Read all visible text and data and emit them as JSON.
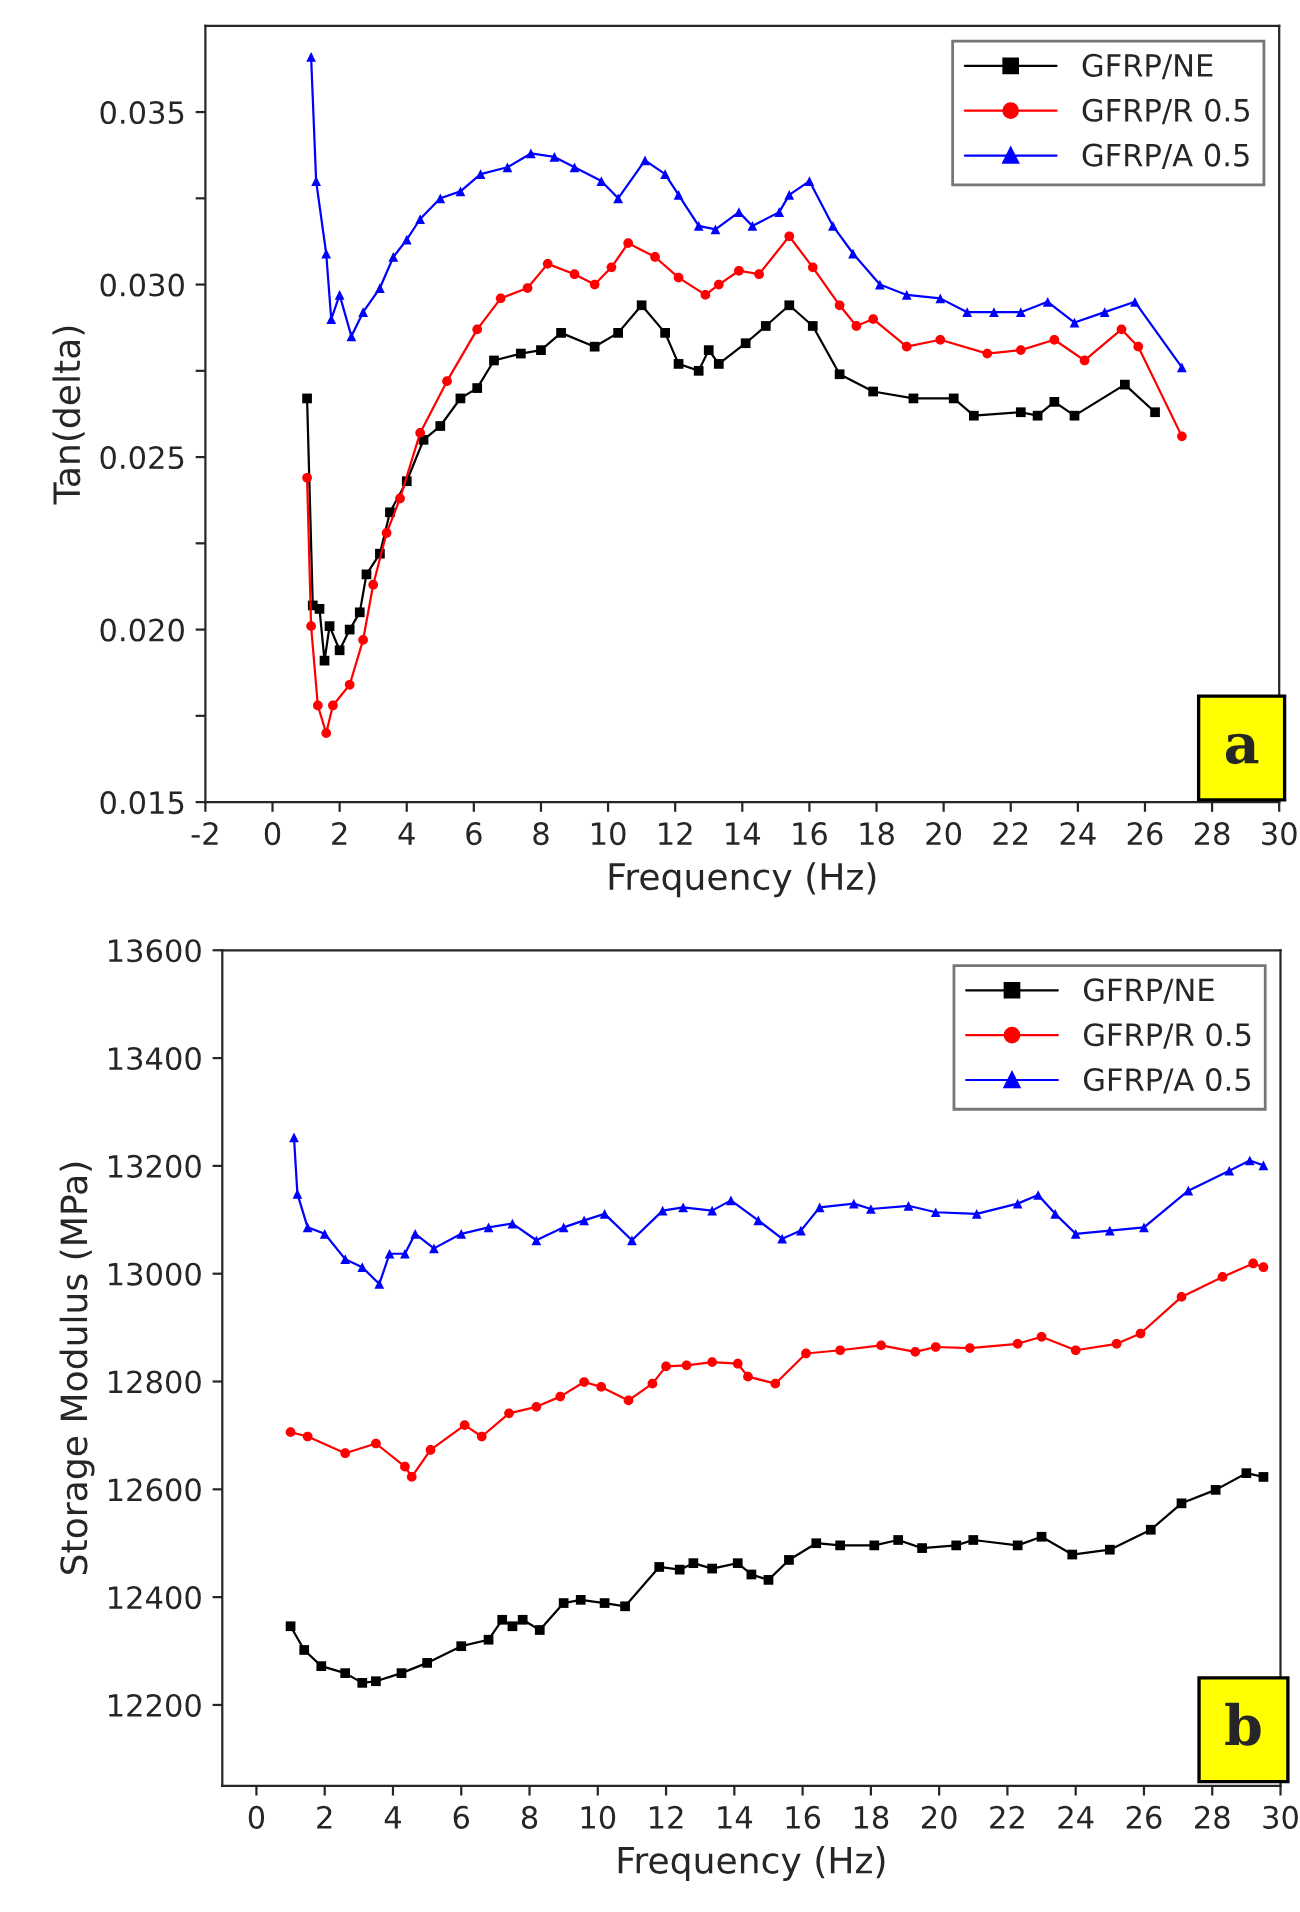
{
  "chart_data": [
    {
      "type": "line",
      "xlabel": "Frequency (Hz)",
      "ylabel": "Tan(delta)",
      "xlim": [
        -2,
        30
      ],
      "xticks": [
        -2,
        0,
        2,
        4,
        6,
        8,
        10,
        12,
        14,
        16,
        18,
        20,
        22,
        24,
        26,
        28,
        30
      ],
      "ylim": [
        0.015,
        0.0375
      ],
      "yticks": [
        {
          "value": 0.015,
          "label": "0.015"
        },
        {
          "value": 0.0175,
          "label": null
        },
        {
          "value": 0.02,
          "label": "0.020"
        },
        {
          "value": 0.0225,
          "label": null
        },
        {
          "value": 0.025,
          "label": "0.025"
        },
        {
          "value": 0.0275,
          "label": null
        },
        {
          "value": 0.03,
          "label": "0.030"
        },
        {
          "value": 0.0325,
          "label": null
        },
        {
          "value": 0.035,
          "label": "0.035"
        }
      ],
      "grid": false,
      "legend": "top right",
      "line_style": "solid",
      "annotations": [
        "a"
      ],
      "series": [
        {
          "name": "GFRP/NE",
          "color": "#000000",
          "marker": "square",
          "x": [
            1.03,
            1.2,
            1.4,
            1.55,
            1.7,
            2.0,
            2.3,
            2.6,
            2.8,
            3.2,
            3.5,
            4.0,
            4.5,
            5.0,
            5.6,
            6.1,
            6.6,
            7.4,
            8.0,
            8.6,
            9.6,
            10.3,
            11.0,
            11.7,
            12.1,
            12.7,
            13.0,
            13.3,
            14.1,
            14.7,
            15.4,
            16.1,
            16.9,
            17.9,
            19.1,
            20.3,
            20.9,
            22.3,
            22.8,
            23.3,
            23.9,
            25.4,
            26.3
          ],
          "values": [
            0.0267,
            0.0207,
            0.0206,
            0.0191,
            0.0201,
            0.0194,
            0.02,
            0.0205,
            0.0216,
            0.0222,
            0.0234,
            0.0243,
            0.0255,
            0.0259,
            0.0267,
            0.027,
            0.0278,
            0.028,
            0.0281,
            0.0286,
            0.0282,
            0.0286,
            0.0294,
            0.0286,
            0.0277,
            0.0275,
            0.0281,
            0.0277,
            0.0283,
            0.0288,
            0.0294,
            0.0288,
            0.0274,
            0.0269,
            0.0267,
            0.0267,
            0.0262,
            0.0263,
            0.0262,
            0.0266,
            0.0262,
            0.0271,
            0.0263
          ]
        },
        {
          "name": "GFRP/R 0.5",
          "color": "#ff0000",
          "marker": "circle",
          "x": [
            1.03,
            1.15,
            1.35,
            1.6,
            1.8,
            2.3,
            2.7,
            3.0,
            3.4,
            3.8,
            4.4,
            5.2,
            6.1,
            6.8,
            7.6,
            8.2,
            9.0,
            9.6,
            10.1,
            10.6,
            11.4,
            12.1,
            12.9,
            13.3,
            13.9,
            14.5,
            15.4,
            16.1,
            16.9,
            17.4,
            17.9,
            18.9,
            19.9,
            21.3,
            22.3,
            23.3,
            24.2,
            25.3,
            25.8,
            27.1
          ],
          "values": [
            0.0244,
            0.0201,
            0.0178,
            0.017,
            0.0178,
            0.0184,
            0.0197,
            0.0213,
            0.0228,
            0.0238,
            0.0257,
            0.0272,
            0.0287,
            0.0296,
            0.0299,
            0.0306,
            0.0303,
            0.03,
            0.0305,
            0.0312,
            0.0308,
            0.0302,
            0.0297,
            0.03,
            0.0304,
            0.0303,
            0.0314,
            0.0305,
            0.0294,
            0.0288,
            0.029,
            0.0282,
            0.0284,
            0.028,
            0.0281,
            0.0284,
            0.0278,
            0.0287,
            0.0282,
            0.0256
          ]
        },
        {
          "name": "GFRP/A 0.5",
          "color": "#0000ff",
          "marker": "triangle",
          "x": [
            1.15,
            1.3,
            1.6,
            1.75,
            2.0,
            2.35,
            2.7,
            3.2,
            3.6,
            4.0,
            4.4,
            5.0,
            5.6,
            6.2,
            7.0,
            7.7,
            8.4,
            9.0,
            9.8,
            10.3,
            11.1,
            11.7,
            12.1,
            12.7,
            13.2,
            13.9,
            14.3,
            15.1,
            15.4,
            16.0,
            16.7,
            17.3,
            18.1,
            18.9,
            19.9,
            20.7,
            21.5,
            22.3,
            23.1,
            23.9,
            24.8,
            25.7,
            27.1
          ],
          "values": [
            0.0366,
            0.033,
            0.0309,
            0.029,
            0.0297,
            0.0285,
            0.0292,
            0.0299,
            0.0308,
            0.0313,
            0.0319,
            0.0325,
            0.0327,
            0.0332,
            0.0334,
            0.0338,
            0.0337,
            0.0334,
            0.033,
            0.0325,
            0.0336,
            0.0332,
            0.0326,
            0.0317,
            0.0316,
            0.0321,
            0.0317,
            0.0321,
            0.0326,
            0.033,
            0.0317,
            0.0309,
            0.03,
            0.0297,
            0.0296,
            0.0292,
            0.0292,
            0.0292,
            0.0295,
            0.0289,
            0.0292,
            0.0295,
            0.0276
          ]
        }
      ]
    },
    {
      "type": "line",
      "xlabel": "Frequency (Hz)",
      "ylabel": "Storage Modulus (MPa)",
      "xlim": [
        -1,
        30
      ],
      "xticks": [
        0,
        2,
        4,
        6,
        8,
        10,
        12,
        14,
        16,
        18,
        20,
        22,
        24,
        26,
        28,
        30
      ],
      "ylim": [
        12050,
        13600
      ],
      "yticks": [
        12200,
        12400,
        12600,
        12800,
        13000,
        13200,
        13400,
        13600
      ],
      "grid": false,
      "legend": "top right",
      "line_style": "solid",
      "annotations": [
        "b"
      ],
      "series": [
        {
          "name": "GFRP/NE",
          "color": "#000000",
          "marker": "square",
          "x": [
            1.0,
            1.4,
            1.9,
            2.6,
            3.1,
            3.5,
            4.25,
            5.0,
            6.0,
            6.8,
            7.2,
            7.5,
            7.8,
            8.3,
            9.0,
            9.5,
            10.2,
            10.8,
            11.8,
            12.4,
            12.8,
            13.35,
            14.1,
            14.5,
            15.0,
            15.6,
            16.4,
            17.1,
            18.1,
            18.8,
            19.5,
            20.5,
            21.0,
            22.3,
            23.0,
            23.9,
            25.0,
            26.2,
            27.1,
            28.1,
            29.0,
            29.5
          ],
          "values": [
            12346,
            12302,
            12272,
            12259,
            12241,
            12244,
            12259,
            12278,
            12309,
            12321,
            12358,
            12346,
            12358,
            12339,
            12389,
            12395,
            12389,
            12383,
            12456,
            12451,
            12463,
            12453,
            12463,
            12442,
            12432,
            12469,
            12500,
            12496,
            12496,
            12506,
            12491,
            12496,
            12506,
            12496,
            12512,
            12479,
            12488,
            12525,
            12574,
            12599,
            12630,
            12623
          ]
        },
        {
          "name": "GFRP/R 0.5",
          "color": "#ff0000",
          "marker": "circle",
          "x": [
            1.0,
            1.5,
            2.6,
            3.5,
            4.35,
            4.55,
            5.1,
            6.1,
            6.6,
            7.4,
            8.2,
            8.9,
            9.6,
            10.1,
            10.9,
            11.6,
            12.0,
            12.6,
            13.35,
            14.1,
            14.4,
            15.2,
            16.1,
            17.1,
            18.3,
            19.3,
            19.9,
            20.9,
            22.3,
            23.0,
            24.0,
            25.2,
            25.9,
            27.1,
            28.3,
            29.2,
            29.5
          ],
          "values": [
            12706,
            12698,
            12667,
            12685,
            12642,
            12623,
            12673,
            12719,
            12698,
            12741,
            12753,
            12772,
            12799,
            12790,
            12765,
            12796,
            12828,
            12830,
            12836,
            12833,
            12809,
            12796,
            12852,
            12858,
            12867,
            12855,
            12864,
            12862,
            12870,
            12883,
            12858,
            12870,
            12889,
            12957,
            12994,
            13019,
            13012
          ]
        },
        {
          "name": "GFRP/A 0.5",
          "color": "#0000ff",
          "marker": "triangle",
          "x": [
            1.1,
            1.2,
            1.5,
            2.0,
            2.6,
            3.1,
            3.6,
            3.9,
            4.35,
            4.65,
            5.2,
            6.0,
            6.8,
            7.5,
            8.2,
            9.0,
            9.6,
            10.2,
            11.0,
            11.9,
            12.5,
            13.35,
            13.9,
            14.7,
            15.4,
            15.95,
            16.5,
            17.5,
            18.0,
            19.1,
            19.9,
            21.1,
            22.3,
            22.9,
            23.4,
            24.0,
            25.0,
            26.0,
            27.3,
            28.5,
            29.1,
            29.5
          ],
          "values": [
            13253,
            13148,
            13086,
            13074,
            13027,
            13012,
            12981,
            13037,
            13037,
            13074,
            13047,
            13074,
            13086,
            13093,
            13062,
            13086,
            13099,
            13111,
            13062,
            13117,
            13123,
            13117,
            13136,
            13099,
            13065,
            13080,
            13123,
            13130,
            13120,
            13126,
            13114,
            13111,
            13130,
            13146,
            13111,
            13074,
            13080,
            13086,
            13154,
            13191,
            13210,
            13201
          ]
        }
      ]
    }
  ]
}
